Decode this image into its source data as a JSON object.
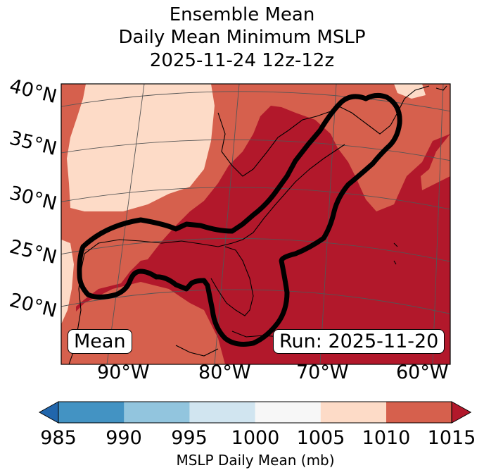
{
  "title": {
    "line1": "Ensemble Mean",
    "line2": "Daily Mean Minimum MSLP",
    "line3": "2025-11-24 12z-12z"
  },
  "map": {
    "lat_labels": [
      "40°N",
      "35°N",
      "30°N",
      "25°N",
      "20°N"
    ],
    "lon_labels": [
      "90°W",
      "80°W",
      "70°W",
      "60°W"
    ],
    "mean_box": "Mean",
    "run_box": "Run: 2025-11-20"
  },
  "colorbar": {
    "ticks": [
      "985",
      "990",
      "995",
      "1000",
      "1005",
      "1010",
      "1015"
    ],
    "label": "MSLP Daily Mean (mb)",
    "colors": [
      "#2166ac",
      "#4393c3",
      "#92c5de",
      "#d1e5f0",
      "#f7f7f7",
      "#fddbc7",
      "#d6604d",
      "#b2182b"
    ]
  }
}
